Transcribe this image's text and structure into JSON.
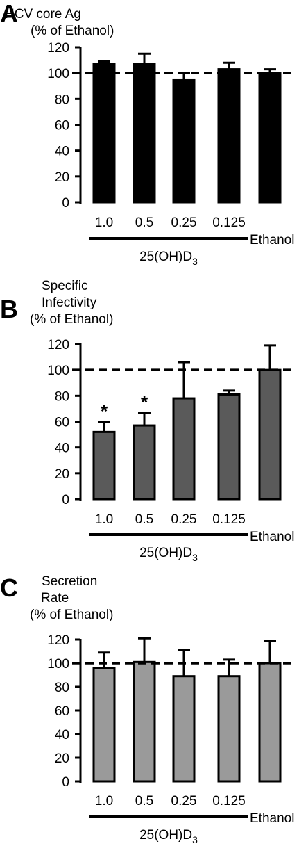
{
  "chart_data": [
    {
      "panel": "A",
      "type": "bar",
      "ylabel": [
        "HCV core Ag",
        "(% of Ethanol)"
      ],
      "categories": [
        "1.0",
        "0.5",
        "0.25",
        "0.125",
        "Ethanol"
      ],
      "values": [
        107,
        107,
        95,
        103,
        100
      ],
      "errors": [
        2,
        8,
        5,
        5,
        3
      ],
      "significant": [
        false,
        false,
        false,
        false,
        false
      ],
      "ylim": [
        0,
        120
      ],
      "yticks": [
        0,
        20,
        40,
        60,
        80,
        100,
        120
      ],
      "reference_line": 100,
      "group_label": "25(OH)D",
      "group_label_sub": "3",
      "bar_color": "#000000"
    },
    {
      "panel": "B",
      "type": "bar",
      "ylabel": [
        "Specific",
        "Infectivity",
        "(% of Ethanol)"
      ],
      "categories": [
        "1.0",
        "0.5",
        "0.25",
        "0.125",
        "Ethanol"
      ],
      "values": [
        52,
        57,
        78,
        81,
        100
      ],
      "errors": [
        8,
        10,
        28,
        3,
        19
      ],
      "significant": [
        true,
        true,
        false,
        false,
        false
      ],
      "significance_marker": "*",
      "ylim": [
        0,
        120
      ],
      "yticks": [
        0,
        20,
        40,
        60,
        80,
        100,
        120
      ],
      "reference_line": 100,
      "group_label": "25(OH)D",
      "group_label_sub": "3",
      "bar_color": "#5a5a5a"
    },
    {
      "panel": "C",
      "type": "bar",
      "ylabel": [
        "Secretion",
        "Rate",
        "(% of Ethanol)"
      ],
      "categories": [
        "1.0",
        "0.5",
        "0.25",
        "0.125",
        "Ethanol"
      ],
      "values": [
        96,
        101,
        89,
        89,
        100
      ],
      "errors": [
        13,
        20,
        22,
        14,
        19
      ],
      "significant": [
        false,
        false,
        false,
        false,
        false
      ],
      "ylim": [
        0,
        120
      ],
      "yticks": [
        0,
        20,
        40,
        60,
        80,
        100,
        120
      ],
      "reference_line": 100,
      "group_label": "25(OH)D",
      "group_label_sub": "3",
      "bar_color": "#9a9a9a"
    }
  ]
}
